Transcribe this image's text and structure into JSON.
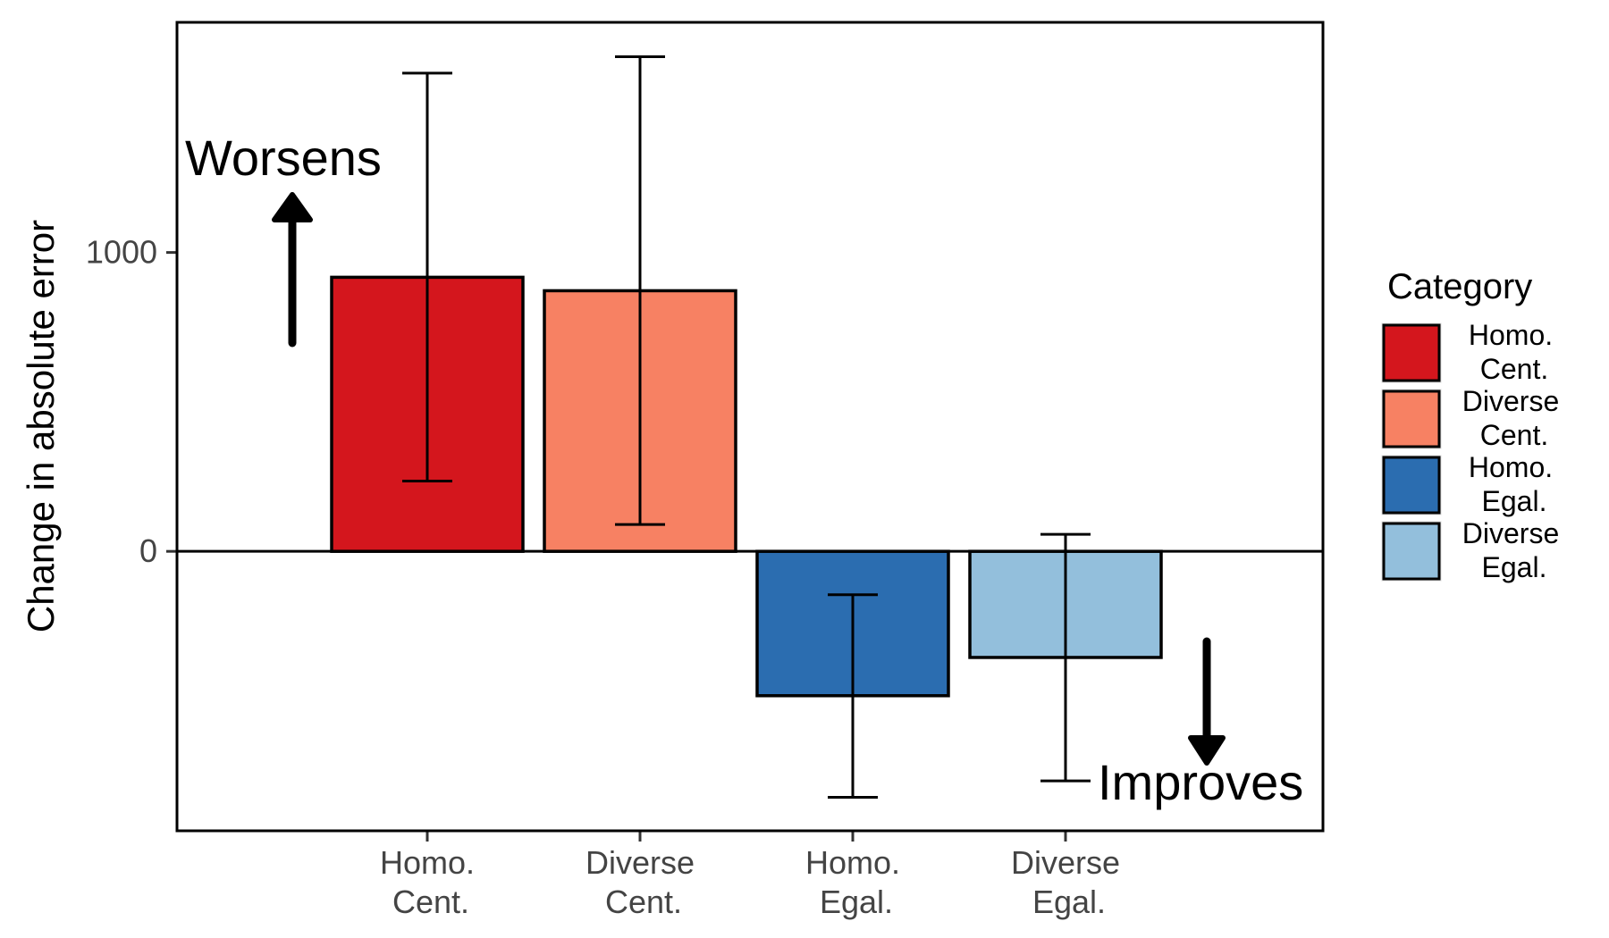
{
  "chart_data": {
    "type": "bar",
    "categories": [
      {
        "line1": "Homo.",
        "line2": "Cent."
      },
      {
        "line1": "Diverse",
        "line2": "Cent."
      },
      {
        "line1": "Homo.",
        "line2": "Egal."
      },
      {
        "line1": "Diverse",
        "line2": "Egal."
      }
    ],
    "values": [
      917,
      872,
      -483,
      -355
    ],
    "error_low": [
      235,
      90,
      -823,
      -768
    ],
    "error_high": [
      1600,
      1655,
      -145,
      57
    ],
    "colors": [
      "#d4161d",
      "#f78163",
      "#2b6db0",
      "#93bfdc"
    ],
    "title": "",
    "xlabel": "",
    "ylabel": "Change in absolute error",
    "ylim": [
      -935,
      1770
    ],
    "yticks": [
      0,
      1000
    ],
    "grid": false,
    "annotations": {
      "worsens": "Worsens",
      "improves": "Improves"
    },
    "legend": {
      "title": "Category",
      "placement": "right",
      "entries": [
        {
          "line1": "Homo.",
          "line2": "Cent."
        },
        {
          "line1": "Diverse",
          "line2": "Cent."
        },
        {
          "line1": "Homo.",
          "line2": "Egal."
        },
        {
          "line1": "Diverse",
          "line2": "Egal."
        }
      ]
    }
  }
}
